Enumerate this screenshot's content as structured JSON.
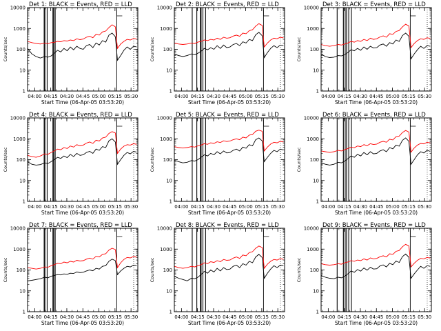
{
  "colors": {
    "events": "#000000",
    "lld": "#ff0000",
    "axis": "#000000",
    "background": "#ffffff"
  },
  "chart_data": {
    "type": "line",
    "layout": "3x3 grid",
    "shared": {
      "ylabel": "Counts/sec",
      "xlabel": "Start Time (06-Apr-05 03:53:20)",
      "y_scale": "log",
      "ylim": [
        1,
        10000
      ],
      "y_ticks": [
        1,
        10,
        100,
        1000,
        10000
      ],
      "y_tick_labels": [
        "1",
        "10",
        "100",
        "1000",
        "10000"
      ],
      "xlim_minutes_after_start": [
        0,
        103
      ],
      "x_ticks_minutes_after_start": [
        6.67,
        21.67,
        36.67,
        51.67,
        66.67,
        81.67,
        96.67
      ],
      "x_tick_labels": [
        "04:00",
        "04:15",
        "04:30",
        "04:45",
        "05:00",
        "05:15",
        "05:30"
      ],
      "series_names": [
        "Events (black)",
        "LLD (red)"
      ]
    },
    "panels": [
      {
        "title": "Det 1: BLACK = Events, RED = LLD",
        "x_minutes": [
          0,
          4,
          8,
          12,
          16,
          19,
          22,
          25,
          28,
          31,
          34,
          37,
          40,
          43,
          46,
          49,
          52,
          55,
          58,
          61,
          64,
          67,
          70,
          73,
          76,
          79,
          82,
          84,
          87,
          90,
          93,
          96,
          99,
          102
        ],
        "events": [
          110,
          60,
          45,
          38,
          45,
          42,
          48,
          65,
          90,
          75,
          110,
          85,
          130,
          95,
          140,
          110,
          100,
          150,
          170,
          120,
          200,
          160,
          260,
          220,
          480,
          600,
          400,
          30,
          50,
          90,
          130,
          100,
          140,
          130
        ],
        "lld": [
          240,
          210,
          190,
          180,
          200,
          185,
          210,
          215,
          240,
          230,
          260,
          250,
          280,
          260,
          320,
          290,
          310,
          380,
          420,
          360,
          520,
          480,
          680,
          750,
          1100,
          1500,
          1200,
          110,
          180,
          240,
          300,
          280,
          330,
          310
        ],
        "vlines_minutes": [
          15.5,
          16.2,
          18.3,
          23.7,
          24.5,
          25.8,
          83.3
        ]
      },
      {
        "title": "Det 2: BLACK = Events, RED = LLD",
        "x_minutes": [
          0,
          4,
          8,
          12,
          16,
          19,
          22,
          25,
          28,
          31,
          34,
          37,
          40,
          43,
          46,
          49,
          52,
          55,
          58,
          61,
          64,
          67,
          70,
          73,
          76,
          79,
          82,
          84,
          87,
          90,
          93,
          96,
          99,
          102
        ],
        "events": [
          60,
          50,
          45,
          50,
          60,
          55,
          65,
          80,
          110,
          95,
          120,
          100,
          150,
          110,
          160,
          120,
          130,
          170,
          190,
          150,
          230,
          200,
          300,
          260,
          500,
          650,
          450,
          40,
          70,
          110,
          150,
          120,
          160,
          150
        ],
        "lld": [
          200,
          180,
          170,
          180,
          200,
          190,
          220,
          240,
          280,
          260,
          300,
          280,
          340,
          300,
          380,
          340,
          360,
          430,
          480,
          420,
          600,
          560,
          780,
          860,
          1300,
          1700,
          1400,
          130,
          200,
          280,
          340,
          320,
          380,
          350
        ],
        "vlines_minutes": [
          16.7,
          21.0,
          24.3,
          25.0,
          26.7,
          29.2,
          83.3
        ]
      },
      {
        "title": "Det 3: BLACK = Events, RED = LLD",
        "x_minutes": [
          0,
          4,
          8,
          12,
          16,
          19,
          22,
          25,
          28,
          31,
          34,
          37,
          40,
          43,
          46,
          49,
          52,
          55,
          58,
          61,
          64,
          67,
          70,
          73,
          76,
          79,
          82,
          84,
          87,
          90,
          93,
          96,
          99,
          102
        ],
        "events": [
          60,
          45,
          40,
          42,
          50,
          48,
          55,
          70,
          95,
          85,
          110,
          90,
          130,
          100,
          140,
          115,
          120,
          160,
          180,
          140,
          210,
          180,
          280,
          240,
          460,
          600,
          420,
          35,
          60,
          95,
          140,
          110,
          150,
          140
        ],
        "lld": [
          170,
          150,
          140,
          150,
          170,
          160,
          180,
          200,
          240,
          220,
          260,
          240,
          300,
          260,
          340,
          300,
          320,
          390,
          440,
          380,
          560,
          520,
          720,
          800,
          1200,
          1600,
          1300,
          120,
          190,
          260,
          320,
          300,
          360,
          330
        ],
        "vlines_minutes": [
          15.0,
          20.8,
          22.5,
          23.8,
          25.8,
          28.3,
          83.3
        ]
      },
      {
        "title": "Det 4: BLACK = Events, RED = LLD",
        "x_minutes": [
          0,
          4,
          8,
          12,
          16,
          19,
          22,
          25,
          28,
          31,
          34,
          37,
          40,
          43,
          46,
          49,
          52,
          55,
          58,
          61,
          64,
          67,
          70,
          73,
          76,
          79,
          82,
          84,
          87,
          90,
          93,
          96,
          99,
          102
        ],
        "events": [
          80,
          60,
          55,
          58,
          70,
          65,
          80,
          100,
          130,
          115,
          150,
          125,
          180,
          140,
          200,
          160,
          170,
          220,
          250,
          200,
          320,
          280,
          420,
          380,
          800,
          1000,
          700,
          60,
          100,
          160,
          220,
          190,
          250,
          230
        ],
        "lld": [
          160,
          140,
          130,
          150,
          190,
          180,
          220,
          260,
          320,
          300,
          380,
          340,
          450,
          400,
          520,
          460,
          500,
          620,
          700,
          600,
          850,
          780,
          1100,
          1200,
          1800,
          2200,
          1900,
          200,
          320,
          440,
          520,
          500,
          580,
          540
        ],
        "vlines_minutes": [
          15.5,
          16.2,
          18.3,
          23.7,
          24.5,
          25.8,
          83.3
        ]
      },
      {
        "title": "Det 5: BLACK = Events, RED = LLD",
        "x_minutes": [
          0,
          4,
          8,
          12,
          16,
          19,
          22,
          25,
          28,
          31,
          34,
          37,
          40,
          43,
          46,
          49,
          52,
          55,
          58,
          61,
          64,
          67,
          70,
          73,
          76,
          79,
          82,
          84,
          87,
          90,
          93,
          96,
          99,
          102
        ],
        "events": [
          95,
          80,
          70,
          75,
          90,
          85,
          100,
          130,
          170,
          150,
          200,
          170,
          240,
          190,
          260,
          210,
          220,
          280,
          320,
          260,
          400,
          350,
          520,
          460,
          900,
          1100,
          800,
          80,
          130,
          200,
          280,
          240,
          320,
          290
        ],
        "lld": [
          420,
          380,
          360,
          380,
          420,
          400,
          460,
          500,
          580,
          540,
          640,
          600,
          720,
          660,
          800,
          740,
          780,
          900,
          1000,
          900,
          1200,
          1100,
          1500,
          1600,
          2300,
          2600,
          2300,
          260,
          400,
          560,
          680,
          640,
          760,
          700
        ],
        "vlines_minutes": [
          16.7,
          21.0,
          24.3,
          25.0,
          26.7,
          29.2,
          83.3
        ]
      },
      {
        "title": "Det 6: BLACK = Events, RED = LLD",
        "x_minutes": [
          0,
          4,
          8,
          12,
          16,
          19,
          22,
          25,
          28,
          31,
          34,
          37,
          40,
          43,
          46,
          49,
          52,
          55,
          58,
          61,
          64,
          67,
          70,
          73,
          76,
          79,
          82,
          84,
          87,
          90,
          93,
          96,
          99,
          102
        ],
        "events": [
          70,
          60,
          55,
          60,
          75,
          70,
          85,
          110,
          150,
          130,
          180,
          150,
          220,
          170,
          240,
          190,
          200,
          260,
          300,
          240,
          380,
          330,
          500,
          440,
          850,
          1100,
          760,
          60,
          100,
          170,
          240,
          210,
          280,
          250
        ],
        "lld": [
          260,
          240,
          220,
          240,
          280,
          260,
          300,
          340,
          400,
          370,
          450,
          420,
          520,
          470,
          580,
          530,
          560,
          680,
          760,
          680,
          950,
          880,
          1250,
          1350,
          2000,
          2500,
          2100,
          230,
          360,
          500,
          600,
          570,
          680,
          630
        ],
        "vlines_minutes": [
          15.0,
          20.8,
          22.5,
          23.8,
          25.8,
          28.3,
          83.3
        ]
      },
      {
        "title": "Det 7: BLACK = Events, RED = LLD",
        "x_minutes": [
          0,
          4,
          8,
          12,
          16,
          19,
          22,
          25,
          28,
          31,
          34,
          37,
          40,
          43,
          46,
          49,
          52,
          55,
          58,
          61,
          64,
          67,
          70,
          73,
          76,
          79,
          82,
          84,
          87,
          90,
          93,
          96,
          99,
          102
        ],
        "events": [
          30,
          32,
          35,
          38,
          45,
          42,
          50,
          55,
          60,
          58,
          65,
          62,
          70,
          68,
          80,
          75,
          78,
          90,
          100,
          92,
          120,
          110,
          150,
          160,
          260,
          330,
          280,
          60,
          90,
          120,
          150,
          140,
          170,
          160
        ],
        "lld": [
          130,
          120,
          110,
          120,
          140,
          135,
          160,
          180,
          210,
          200,
          240,
          220,
          260,
          240,
          290,
          270,
          280,
          330,
          370,
          330,
          450,
          420,
          560,
          600,
          900,
          1100,
          950,
          130,
          220,
          320,
          400,
          380,
          440,
          410
        ],
        "vlines_minutes": [
          15.5,
          16.2,
          18.3,
          23.7,
          24.5,
          25.8,
          83.3
        ]
      },
      {
        "title": "Det 8: BLACK = Events, RED = LLD",
        "x_minutes": [
          0,
          4,
          8,
          12,
          16,
          19,
          22,
          25,
          28,
          31,
          34,
          37,
          40,
          43,
          46,
          49,
          52,
          55,
          58,
          61,
          64,
          67,
          70,
          73,
          76,
          79,
          82,
          84,
          87,
          90,
          93,
          96,
          99,
          102
        ],
        "events": [
          50,
          40,
          35,
          30,
          40,
          38,
          45,
          60,
          85,
          70,
          100,
          80,
          120,
          90,
          130,
          105,
          110,
          150,
          170,
          130,
          200,
          170,
          260,
          220,
          420,
          560,
          400,
          40,
          70,
          110,
          160,
          130,
          170,
          160
        ],
        "lld": [
          150,
          130,
          120,
          130,
          150,
          140,
          160,
          180,
          220,
          200,
          250,
          230,
          280,
          250,
          320,
          290,
          300,
          370,
          420,
          360,
          520,
          480,
          680,
          750,
          1100,
          1400,
          1200,
          120,
          190,
          260,
          320,
          300,
          350,
          320
        ],
        "vlines_minutes": [
          16.7,
          21.0,
          24.3,
          25.0,
          26.7,
          29.2,
          83.3
        ]
      },
      {
        "title": "Det 9: BLACK = Events, RED = LLD",
        "x_minutes": [
          0,
          4,
          8,
          12,
          16,
          19,
          22,
          25,
          28,
          31,
          34,
          37,
          40,
          43,
          46,
          49,
          52,
          55,
          58,
          61,
          64,
          67,
          70,
          73,
          76,
          79,
          82,
          84,
          87,
          90,
          93,
          96,
          99,
          102
        ],
        "events": [
          55,
          45,
          40,
          38,
          45,
          42,
          50,
          65,
          90,
          78,
          105,
          88,
          125,
          98,
          135,
          110,
          115,
          155,
          175,
          140,
          210,
          180,
          270,
          230,
          440,
          580,
          410,
          40,
          65,
          100,
          150,
          120,
          160,
          150
        ],
        "lld": [
          200,
          180,
          170,
          180,
          200,
          190,
          220,
          240,
          280,
          260,
          300,
          280,
          340,
          300,
          380,
          340,
          360,
          430,
          480,
          420,
          600,
          560,
          780,
          860,
          1300,
          1700,
          1400,
          140,
          210,
          290,
          360,
          340,
          400,
          370
        ],
        "vlines_minutes": [
          15.0,
          20.8,
          22.5,
          23.8,
          25.8,
          28.3,
          83.3
        ]
      }
    ]
  }
}
